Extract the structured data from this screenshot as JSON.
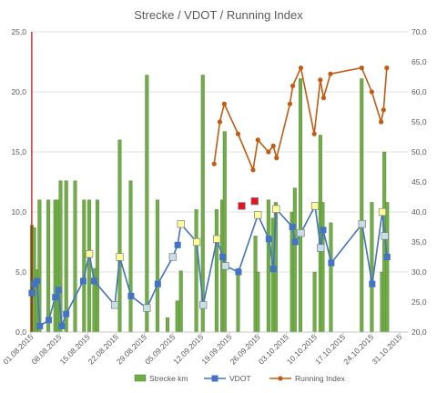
{
  "chart_data": {
    "type": "bar+line",
    "title": "Strecke / VDOT / Running Index",
    "left_axis": {
      "min": 0,
      "max": 25,
      "step": 5,
      "labels": [
        "0,0",
        "5,0",
        "10,0",
        "15,0",
        "20,0",
        "25,0"
      ]
    },
    "right_axis": {
      "min": 20,
      "max": 70,
      "step": 5,
      "labels": [
        "20,0",
        "25,0",
        "30,0",
        "35,0",
        "40,0",
        "45,0",
        "50,0",
        "55,0",
        "60,0",
        "65,0",
        "70,0"
      ]
    },
    "x_axis": {
      "start_day": 0,
      "end_day": 93,
      "tick_days": [
        0,
        7,
        14,
        21,
        28,
        35,
        42,
        49,
        56,
        63,
        70,
        77,
        84,
        91
      ],
      "tick_labels": [
        "01.08.2015",
        "08.08.2015",
        "15.08.2015",
        "22.08.2015",
        "29.08.2015",
        "05.09.2015",
        "12.09.2015",
        "19.09.2015",
        "26.09.2015",
        "03.10.2015",
        "10.10.2015",
        "17.10.2015",
        "24.10.2015",
        "31.10.2015"
      ]
    },
    "colors": {
      "bar": "#70ad47",
      "bar_edge": "#507e32",
      "vdot": "#4472c4",
      "running_index": "#c55a11",
      "marker_yellow": "#ffff99",
      "marker_teal": "#c6e0e8",
      "marker_red": "#e81123",
      "cursor_line": "#c00000"
    },
    "series": [
      {
        "name": "Strecke km",
        "axis": "left",
        "kind": "bar",
        "points": [
          [
            0.2,
            8.9
          ],
          [
            0.8,
            8.7
          ],
          [
            1.5,
            5.2
          ],
          [
            2.1,
            11.0
          ],
          [
            4.3,
            11.0
          ],
          [
            6.0,
            11.0
          ],
          [
            6.6,
            11.0
          ],
          [
            7.3,
            12.6
          ],
          [
            8.7,
            12.6
          ],
          [
            10.9,
            12.6
          ],
          [
            13.1,
            11.0
          ],
          [
            14.4,
            11.0
          ],
          [
            15.6,
            5.3
          ],
          [
            16.4,
            11.0
          ],
          [
            21.9,
            16.0
          ],
          [
            24.6,
            12.6
          ],
          [
            28.6,
            21.4
          ],
          [
            31.2,
            11.0
          ],
          [
            33.7,
            1.2
          ],
          [
            36.1,
            2.6
          ],
          [
            37.0,
            5.1
          ],
          [
            40.8,
            10.2
          ],
          [
            42.4,
            21.4
          ],
          [
            45.8,
            10.2
          ],
          [
            47.2,
            11.0
          ],
          [
            47.8,
            16.7
          ],
          [
            51.1,
            5.3
          ],
          [
            55.4,
            8.0
          ],
          [
            56.0,
            5.0
          ],
          [
            58.6,
            11.0
          ],
          [
            59.7,
            9.5
          ],
          [
            60.4,
            10.8
          ],
          [
            64.4,
            10.0
          ],
          [
            65.1,
            12.0
          ],
          [
            66.5,
            21.1
          ],
          [
            70.0,
            5.0
          ],
          [
            71.4,
            16.4
          ],
          [
            72.0,
            10.8
          ],
          [
            74.0,
            9.1
          ],
          [
            81.6,
            21.1
          ],
          [
            84.1,
            10.8
          ],
          [
            86.6,
            5.0
          ],
          [
            87.2,
            15.0
          ],
          [
            87.9,
            10.8
          ]
        ]
      },
      {
        "name": "VDOT",
        "axis": "right",
        "kind": "line",
        "points": [
          [
            0.2,
            26.5
          ],
          [
            0.9,
            28.0
          ],
          [
            1.5,
            28.5
          ],
          [
            2.2,
            21.0
          ],
          [
            4.4,
            22.0
          ],
          [
            6.0,
            25.8
          ],
          [
            6.8,
            27.0
          ],
          [
            7.6,
            21.0
          ],
          [
            8.7,
            23.0
          ],
          [
            12.9,
            28.5
          ],
          [
            14.4,
            33.0
          ],
          [
            15.6,
            28.5
          ],
          [
            20.7,
            24.5
          ],
          [
            21.9,
            32.5
          ],
          [
            24.7,
            26.0
          ],
          [
            28.6,
            24.0
          ],
          [
            31.3,
            28.0
          ],
          [
            35.0,
            32.5
          ],
          [
            36.2,
            34.5
          ],
          [
            37.0,
            38.0
          ],
          [
            40.9,
            35.0
          ],
          [
            42.5,
            24.5
          ],
          [
            45.9,
            35.5
          ],
          [
            47.3,
            32.5
          ],
          [
            48.0,
            31.0
          ],
          [
            51.2,
            30.0
          ],
          [
            56.0,
            39.5
          ],
          [
            58.7,
            35.5
          ],
          [
            59.8,
            30.5
          ],
          [
            60.5,
            40.5
          ],
          [
            64.5,
            37.5
          ],
          [
            65.2,
            35.0
          ],
          [
            66.6,
            36.5
          ],
          [
            70.1,
            41.0
          ],
          [
            71.5,
            34.0
          ],
          [
            72.1,
            37.0
          ],
          [
            74.1,
            31.5
          ],
          [
            81.7,
            38.0
          ],
          [
            84.2,
            28.0
          ],
          [
            86.7,
            40.0
          ],
          [
            87.3,
            36.0
          ],
          [
            87.9,
            32.5
          ]
        ]
      },
      {
        "name": "Running Index",
        "axis": "right",
        "kind": "line",
        "points": [
          [
            45.2,
            48.0
          ],
          [
            46.6,
            55.0
          ],
          [
            47.7,
            58.0
          ],
          [
            51.1,
            53.0
          ],
          [
            54.8,
            47.0
          ],
          [
            56.0,
            52.0
          ],
          [
            58.6,
            50.0
          ],
          [
            59.8,
            51.0
          ],
          [
            60.6,
            49.0
          ],
          [
            63.9,
            58.0
          ],
          [
            64.6,
            61.0
          ],
          [
            66.6,
            64.0
          ],
          [
            69.9,
            53.0
          ],
          [
            71.4,
            62.0
          ],
          [
            72.2,
            59.0
          ],
          [
            73.9,
            63.0
          ],
          [
            81.6,
            64.0
          ],
          [
            84.1,
            60.0
          ],
          [
            86.4,
            55.0
          ],
          [
            87.0,
            57.0
          ],
          [
            87.8,
            64.0
          ]
        ]
      }
    ],
    "highlight_markers": {
      "yellow": [
        [
          14.4,
          33.0
        ],
        [
          21.9,
          32.5
        ],
        [
          37.0,
          38.0
        ],
        [
          40.9,
          35.0
        ],
        [
          45.9,
          35.5
        ],
        [
          56.0,
          39.5
        ],
        [
          60.5,
          40.5
        ],
        [
          70.1,
          41.0
        ],
        [
          86.7,
          40.0
        ]
      ],
      "teal": [
        [
          20.7,
          24.5
        ],
        [
          28.6,
          24.0
        ],
        [
          35.0,
          32.5
        ],
        [
          42.5,
          24.5
        ],
        [
          48.0,
          31.0
        ],
        [
          66.6,
          36.5
        ],
        [
          71.5,
          34.0
        ],
        [
          81.7,
          38.0
        ],
        [
          87.3,
          36.0
        ]
      ],
      "red": [
        [
          52.0,
          41.0
        ],
        [
          55.2,
          41.8
        ]
      ]
    },
    "legend": [
      "Strecke km",
      "VDOT",
      "Running Index"
    ],
    "grid": true,
    "legend_position": "bottom"
  }
}
